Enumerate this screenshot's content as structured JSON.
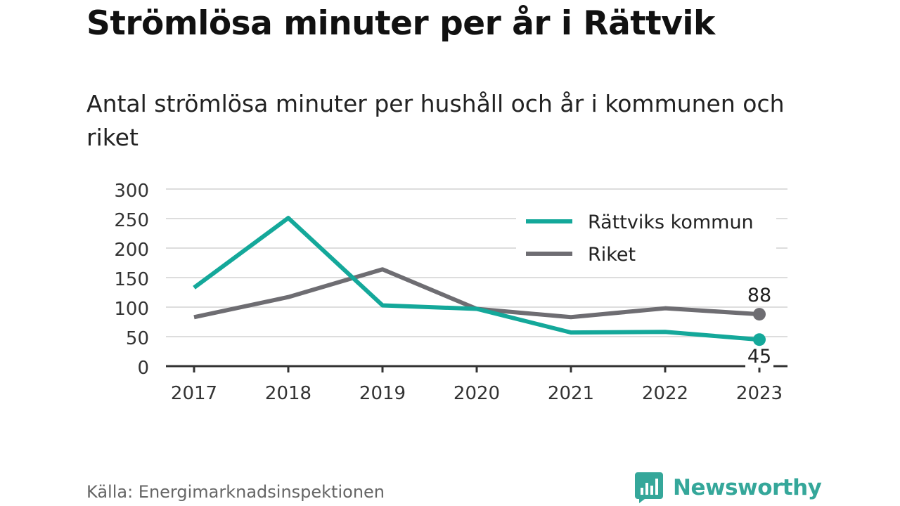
{
  "title": "Strömlösa minuter per år i Rättvik",
  "subtitle": "Antal strömlösa minuter per hushåll och år i kommunen och riket",
  "source": "Källa: Energimarknadsinspektionen",
  "brand": {
    "name": "Newsworthy",
    "icon": "newsworthy-logo-icon",
    "color": "#35a79a"
  },
  "chart_data": {
    "type": "line",
    "x": [
      "2017",
      "2018",
      "2019",
      "2020",
      "2021",
      "2022",
      "2023"
    ],
    "series": [
      {
        "name": "Rättviks kommun",
        "color": "#14a89a",
        "values": [
          133,
          251,
          103,
          97,
          57,
          58,
          45
        ],
        "end_label": "45"
      },
      {
        "name": "Riket",
        "color": "#6e6d72",
        "values": [
          83,
          117,
          164,
          97,
          83,
          98,
          88
        ],
        "end_label": "88"
      }
    ],
    "yticks": [
      "0",
      "50",
      "100",
      "150",
      "200",
      "250",
      "300"
    ],
    "ylim": [
      0,
      300
    ],
    "grid": true,
    "legend_position": "top-right",
    "xlabel": "",
    "ylabel": ""
  }
}
